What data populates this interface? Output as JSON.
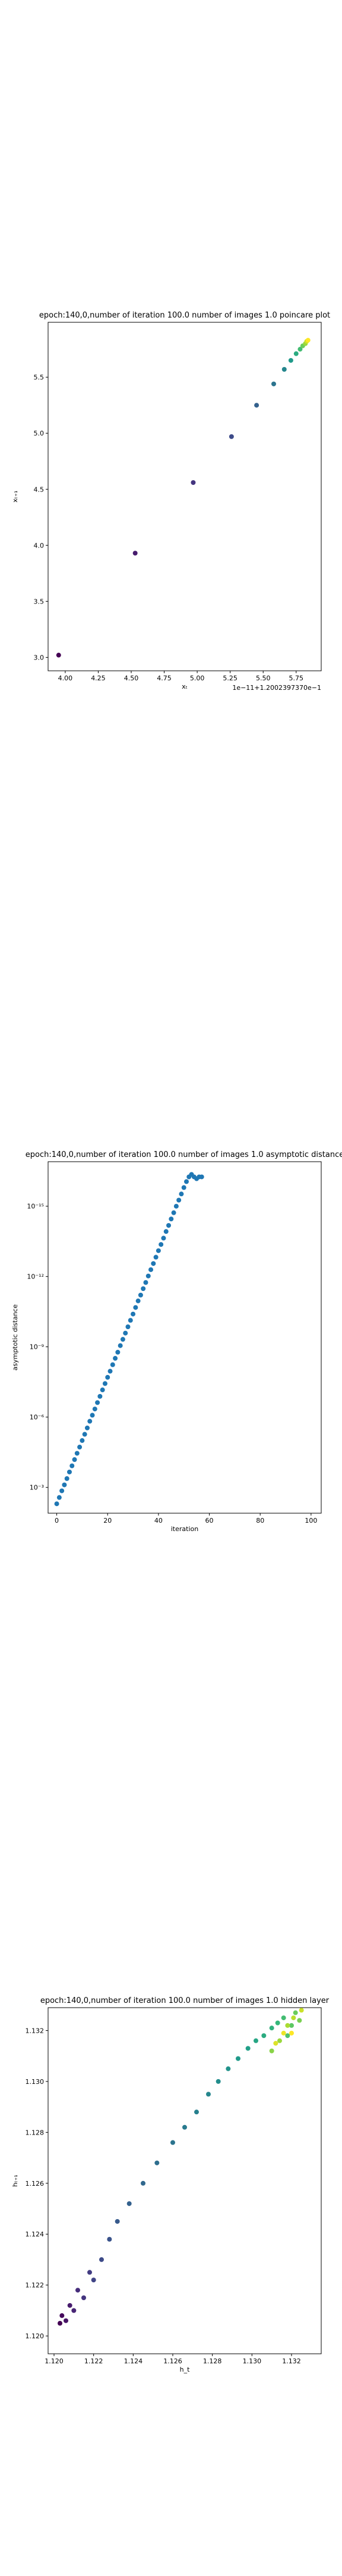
{
  "chart_data": [
    {
      "type": "scatter",
      "title": "epoch:140,0,number of iteration 100.0 number of images 1.0 poincare plot",
      "offset_text": "1e−11+1.2002397370e−1",
      "xlabel": "xₜ",
      "ylabel": "xₜ₊₁",
      "colormap": "viridis",
      "x": [
        3.95,
        4.53,
        4.97,
        5.26,
        5.45,
        5.58,
        5.66,
        5.71,
        5.75,
        5.78,
        5.8,
        5.82,
        5.83,
        5.84
      ],
      "series": [
        {
          "values": [
            3.02,
            3.93,
            4.56,
            4.97,
            5.25,
            5.44,
            5.57,
            5.65,
            5.71,
            5.75,
            5.78,
            5.8,
            5.82,
            5.83
          ]
        }
      ],
      "xlim": [
        3.87,
        5.94
      ],
      "ylim": [
        2.88,
        5.99
      ],
      "xticks": [
        {
          "value": 4.0,
          "label": "4.00"
        },
        {
          "value": 4.25,
          "label": "4.25"
        },
        {
          "value": 4.5,
          "label": "4.50"
        },
        {
          "value": 4.75,
          "label": "4.75"
        },
        {
          "value": 5.0,
          "label": "5.00"
        },
        {
          "value": 5.25,
          "label": "5.25"
        },
        {
          "value": 5.5,
          "label": "5.50"
        },
        {
          "value": 5.75,
          "label": "5.75"
        }
      ],
      "yticks": [
        {
          "value": 3.0,
          "label": "3.0"
        },
        {
          "value": 3.5,
          "label": "3.5"
        },
        {
          "value": 4.0,
          "label": "4.0"
        },
        {
          "value": 4.5,
          "label": "4.5"
        },
        {
          "value": 5.0,
          "label": "5.0"
        },
        {
          "value": 5.5,
          "label": "5.5"
        }
      ]
    },
    {
      "type": "scatter",
      "title": "epoch:140,0,number of iteration 100.0  number of images 1.0 asymptotic distance",
      "xlabel": "iteration",
      "ylabel": "asymptotic distance",
      "color": "#1f77b4",
      "ylog": true,
      "x": [
        0,
        1,
        2,
        3,
        4,
        5,
        6,
        7,
        8,
        9,
        10,
        11,
        12,
        13,
        14,
        15,
        16,
        17,
        18,
        19,
        20,
        21,
        22,
        23,
        24,
        25,
        26,
        27,
        28,
        29,
        30,
        31,
        32,
        33,
        34,
        35,
        36,
        37,
        38,
        39,
        40,
        41,
        42,
        43,
        44,
        45,
        46,
        47,
        48,
        49,
        50,
        51,
        52,
        53,
        54,
        55,
        56,
        57
      ],
      "series": [
        {
          "values": [
            0.005,
            0.0027,
            0.0014,
            0.00078,
            0.00042,
            0.00022,
            0.00012,
            6.5e-05,
            3.5e-05,
            1.9e-05,
            1e-05,
            5.4e-06,
            2.9e-06,
            1.5e-06,
            8.3e-07,
            4.5e-07,
            2.4e-07,
            1.3e-07,
            6.9e-08,
            3.7e-08,
            2e-08,
            1.1e-08,
            5.8e-09,
            3.1e-09,
            1.7e-09,
            8.9e-10,
            4.8e-10,
            2.6e-10,
            1.4e-10,
            7.4e-11,
            4e-11,
            2.1e-11,
            1.1e-11,
            6.2e-12,
            3.3e-12,
            1.8e-12,
            9.5e-13,
            5.1e-13,
            2.8e-13,
            1.5e-13,
            7.9e-14,
            4.3e-14,
            2.3e-14,
            1.2e-14,
            6.6e-15,
            3.5e-15,
            1.9e-15,
            1e-15,
            5.5e-16,
            3e-16,
            1.6e-16,
            8.9e-17,
            5.6e-17,
            4.4e-17,
            5.6e-17,
            6.7e-17,
            5.6e-17,
            5.6e-17
          ]
        }
      ],
      "xlim": [
        -3.4,
        104.0
      ],
      "ylim": [
        0.0126,
        1.26e-17
      ],
      "xticks": [
        0,
        20,
        40,
        60,
        80,
        100
      ],
      "yticks": [
        {
          "value": 0.001,
          "label": "10⁻³"
        },
        {
          "value": 1e-06,
          "label": "10⁻⁶"
        },
        {
          "value": 1e-09,
          "label": "10⁻⁹"
        },
        {
          "value": 1e-12,
          "label": "10⁻¹²"
        },
        {
          "value": 1e-15,
          "label": "10⁻¹⁵"
        }
      ]
    },
    {
      "type": "scatter",
      "title": "epoch:140,0,number of iteration 100.0  number of images 1.0 hidden layer",
      "xlabel": "h_t",
      "ylabel": "hₜ₊₁",
      "colormap": "viridis",
      "x": [
        1.1203,
        1.1204,
        1.1206,
        1.1208,
        1.121,
        1.1212,
        1.1215,
        1.1218,
        1.122,
        1.1224,
        1.1228,
        1.1232,
        1.1238,
        1.1245,
        1.1252,
        1.126,
        1.1266,
        1.1272,
        1.1278,
        1.1283,
        1.1288,
        1.1293,
        1.1298,
        1.1302,
        1.1306,
        1.131,
        1.1313,
        1.1316,
        1.1318,
        1.132,
        1.1322,
        1.1324,
        1.131,
        1.1314,
        1.1318,
        1.1321,
        1.1325,
        1.1312,
        1.1316,
        1.132
      ],
      "series": [
        {
          "values": [
            1.1205,
            1.1208,
            1.1206,
            1.1212,
            1.121,
            1.1218,
            1.1215,
            1.1225,
            1.1222,
            1.123,
            1.1238,
            1.1245,
            1.1252,
            1.126,
            1.1268,
            1.1276,
            1.1282,
            1.1288,
            1.1295,
            1.13,
            1.1305,
            1.1309,
            1.1313,
            1.1316,
            1.1318,
            1.1321,
            1.1323,
            1.1325,
            1.1318,
            1.1322,
            1.1327,
            1.1324,
            1.1312,
            1.1316,
            1.1322,
            1.1325,
            1.1328,
            1.1315,
            1.1319,
            1.1319
          ]
        }
      ],
      "xlim": [
        1.1197,
        1.1335
      ],
      "ylim": [
        1.1193,
        1.1329
      ],
      "xticks": [
        {
          "value": 1.12,
          "label": "1.120"
        },
        {
          "value": 1.122,
          "label": "1.122"
        },
        {
          "value": 1.124,
          "label": "1.124"
        },
        {
          "value": 1.126,
          "label": "1.126"
        },
        {
          "value": 1.128,
          "label": "1.128"
        },
        {
          "value": 1.13,
          "label": "1.130"
        },
        {
          "value": 1.132,
          "label": "1.132"
        }
      ],
      "yticks": [
        {
          "value": 1.12,
          "label": "1.120"
        },
        {
          "value": 1.122,
          "label": "1.122"
        },
        {
          "value": 1.124,
          "label": "1.124"
        },
        {
          "value": 1.126,
          "label": "1.126"
        },
        {
          "value": 1.128,
          "label": "1.128"
        },
        {
          "value": 1.13,
          "label": "1.130"
        },
        {
          "value": 1.132,
          "label": "1.132"
        }
      ]
    }
  ]
}
